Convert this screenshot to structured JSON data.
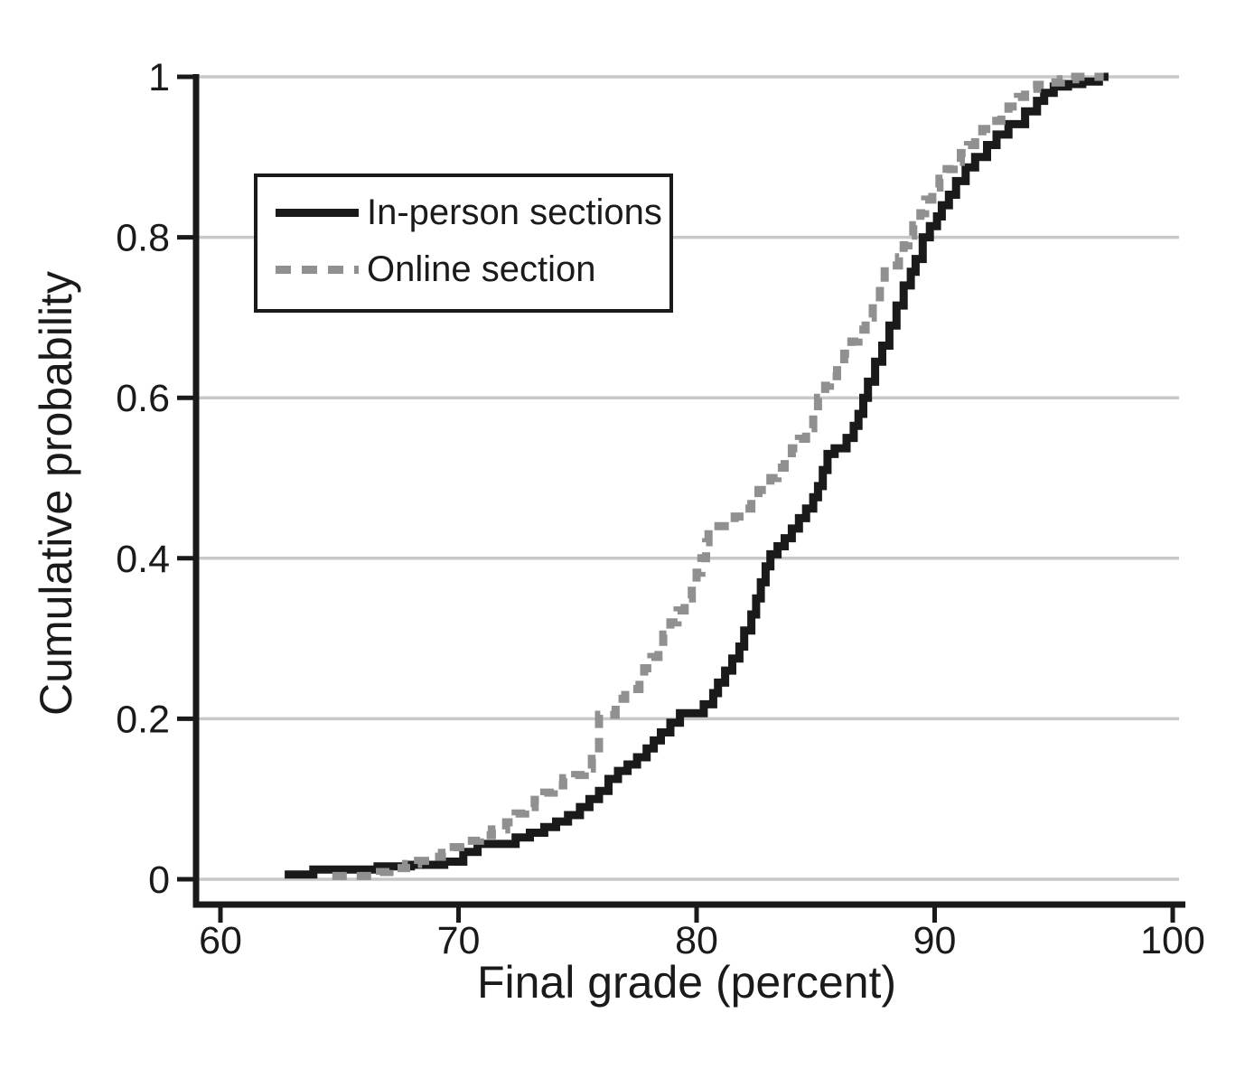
{
  "figure": {
    "background": "#ffffff",
    "axis_color": "#1a1a1a",
    "gridline_color": "#c8c8c8",
    "text_color": "#1a1a1a"
  },
  "chart_data": {
    "type": "line",
    "subtype": "empirical_cdf_step",
    "title": "",
    "xlabel": "Final grade (percent)",
    "ylabel": "Cumulative probability",
    "xlim": [
      60,
      100
    ],
    "ylim": [
      0,
      1
    ],
    "xticks": [
      60,
      70,
      80,
      90,
      100
    ],
    "xtick_labels": [
      "60",
      "70",
      "80",
      "90",
      "100"
    ],
    "yticks": [
      0,
      0.2,
      0.4,
      0.6,
      0.8,
      1
    ],
    "ytick_labels": [
      "0",
      "0.2",
      "0.4",
      "0.6",
      "0.8",
      "1"
    ],
    "grid": "horizontal",
    "legend_position": "upper-left-inside",
    "series": [
      {
        "name": "In-person sections",
        "color": "#1a1a1a",
        "style": "solid",
        "line_width": 9,
        "points": [
          [
            62.7,
            0.006
          ],
          [
            63.9,
            0.012
          ],
          [
            66.6,
            0.016
          ],
          [
            68.0,
            0.018
          ],
          [
            69.4,
            0.022
          ],
          [
            70.2,
            0.034
          ],
          [
            70.8,
            0.044
          ],
          [
            72.4,
            0.052
          ],
          [
            73.0,
            0.058
          ],
          [
            73.6,
            0.065
          ],
          [
            74.1,
            0.072
          ],
          [
            74.6,
            0.08
          ],
          [
            75.1,
            0.09
          ],
          [
            75.5,
            0.1
          ],
          [
            75.9,
            0.11
          ],
          [
            76.3,
            0.125
          ],
          [
            76.7,
            0.135
          ],
          [
            77.1,
            0.143
          ],
          [
            77.5,
            0.152
          ],
          [
            77.9,
            0.163
          ],
          [
            78.2,
            0.173
          ],
          [
            78.5,
            0.183
          ],
          [
            78.9,
            0.195
          ],
          [
            79.3,
            0.207
          ],
          [
            80.3,
            0.218
          ],
          [
            80.7,
            0.232
          ],
          [
            80.9,
            0.245
          ],
          [
            81.2,
            0.26
          ],
          [
            81.5,
            0.275
          ],
          [
            81.8,
            0.29
          ],
          [
            82.0,
            0.31
          ],
          [
            82.3,
            0.33
          ],
          [
            82.5,
            0.35
          ],
          [
            82.7,
            0.37
          ],
          [
            82.9,
            0.39
          ],
          [
            83.1,
            0.405
          ],
          [
            83.4,
            0.415
          ],
          [
            83.7,
            0.425
          ],
          [
            84.0,
            0.437
          ],
          [
            84.3,
            0.45
          ],
          [
            84.6,
            0.462
          ],
          [
            84.9,
            0.476
          ],
          [
            85.1,
            0.49
          ],
          [
            85.3,
            0.51
          ],
          [
            85.5,
            0.53
          ],
          [
            85.8,
            0.537
          ],
          [
            86.3,
            0.55
          ],
          [
            86.6,
            0.565
          ],
          [
            86.8,
            0.58
          ],
          [
            87.0,
            0.6
          ],
          [
            87.2,
            0.62
          ],
          [
            87.5,
            0.645
          ],
          [
            87.8,
            0.665
          ],
          [
            88.1,
            0.69
          ],
          [
            88.4,
            0.715
          ],
          [
            88.7,
            0.74
          ],
          [
            89.0,
            0.757
          ],
          [
            89.2,
            0.773
          ],
          [
            89.5,
            0.8
          ],
          [
            89.8,
            0.814
          ],
          [
            90.1,
            0.826
          ],
          [
            90.3,
            0.84
          ],
          [
            90.6,
            0.853
          ],
          [
            90.9,
            0.87
          ],
          [
            91.3,
            0.887
          ],
          [
            91.7,
            0.9
          ],
          [
            92.2,
            0.915
          ],
          [
            92.6,
            0.928
          ],
          [
            93.1,
            0.941
          ],
          [
            93.8,
            0.957
          ],
          [
            94.3,
            0.97
          ],
          [
            94.6,
            0.98
          ],
          [
            95.0,
            0.988
          ],
          [
            95.6,
            0.991
          ],
          [
            96.2,
            0.994
          ],
          [
            96.9,
            1.0
          ],
          [
            97.3,
            1.0
          ]
        ]
      },
      {
        "name": "Online section",
        "color": "#909090",
        "style": "dashed",
        "line_width": 9,
        "dash_pattern": [
          16,
          11
        ],
        "points": [
          [
            64.7,
            0.004
          ],
          [
            66.7,
            0.009
          ],
          [
            67.1,
            0.014
          ],
          [
            67.8,
            0.019
          ],
          [
            68.3,
            0.023
          ],
          [
            68.8,
            0.028
          ],
          [
            69.3,
            0.033
          ],
          [
            69.8,
            0.04
          ],
          [
            70.3,
            0.048
          ],
          [
            70.9,
            0.055
          ],
          [
            71.4,
            0.062
          ],
          [
            72.0,
            0.071
          ],
          [
            72.4,
            0.082
          ],
          [
            72.8,
            0.09
          ],
          [
            73.2,
            0.099
          ],
          [
            73.6,
            0.108
          ],
          [
            74.0,
            0.117
          ],
          [
            74.4,
            0.126
          ],
          [
            74.9,
            0.13
          ],
          [
            75.3,
            0.138
          ],
          [
            75.6,
            0.15
          ],
          [
            75.9,
            0.205
          ],
          [
            76.6,
            0.225
          ],
          [
            77.0,
            0.237
          ],
          [
            77.6,
            0.25
          ],
          [
            77.8,
            0.263
          ],
          [
            78.1,
            0.277
          ],
          [
            78.4,
            0.29
          ],
          [
            78.6,
            0.305
          ],
          [
            78.9,
            0.32
          ],
          [
            79.2,
            0.335
          ],
          [
            79.5,
            0.35
          ],
          [
            79.8,
            0.365
          ],
          [
            80.0,
            0.382
          ],
          [
            80.2,
            0.4
          ],
          [
            80.4,
            0.42
          ],
          [
            80.5,
            0.44
          ],
          [
            81.6,
            0.452
          ],
          [
            82.0,
            0.462
          ],
          [
            82.3,
            0.475
          ],
          [
            82.6,
            0.485
          ],
          [
            83.1,
            0.5
          ],
          [
            83.4,
            0.513
          ],
          [
            83.7,
            0.525
          ],
          [
            84.0,
            0.537
          ],
          [
            84.3,
            0.549
          ],
          [
            84.6,
            0.562
          ],
          [
            84.9,
            0.578
          ],
          [
            85.1,
            0.6
          ],
          [
            85.4,
            0.615
          ],
          [
            85.6,
            0.627
          ],
          [
            85.9,
            0.64
          ],
          [
            86.2,
            0.655
          ],
          [
            86.5,
            0.67
          ],
          [
            86.8,
            0.685
          ],
          [
            87.1,
            0.7
          ],
          [
            87.4,
            0.72
          ],
          [
            87.7,
            0.742
          ],
          [
            87.9,
            0.765
          ],
          [
            88.5,
            0.775
          ],
          [
            88.7,
            0.79
          ],
          [
            88.9,
            0.802
          ],
          [
            89.1,
            0.815
          ],
          [
            89.4,
            0.83
          ],
          [
            89.6,
            0.847
          ],
          [
            89.9,
            0.862
          ],
          [
            90.2,
            0.873
          ],
          [
            90.5,
            0.885
          ],
          [
            90.8,
            0.894
          ],
          [
            91.1,
            0.905
          ],
          [
            91.4,
            0.915
          ],
          [
            91.7,
            0.925
          ],
          [
            92.0,
            0.935
          ],
          [
            92.4,
            0.945
          ],
          [
            92.8,
            0.955
          ],
          [
            93.1,
            0.963
          ],
          [
            93.5,
            0.975
          ],
          [
            93.8,
            0.985
          ],
          [
            94.3,
            0.99
          ],
          [
            94.8,
            0.993
          ],
          [
            95.3,
            0.997
          ],
          [
            95.9,
            1.0
          ],
          [
            97.1,
            1.0
          ]
        ]
      }
    ]
  }
}
